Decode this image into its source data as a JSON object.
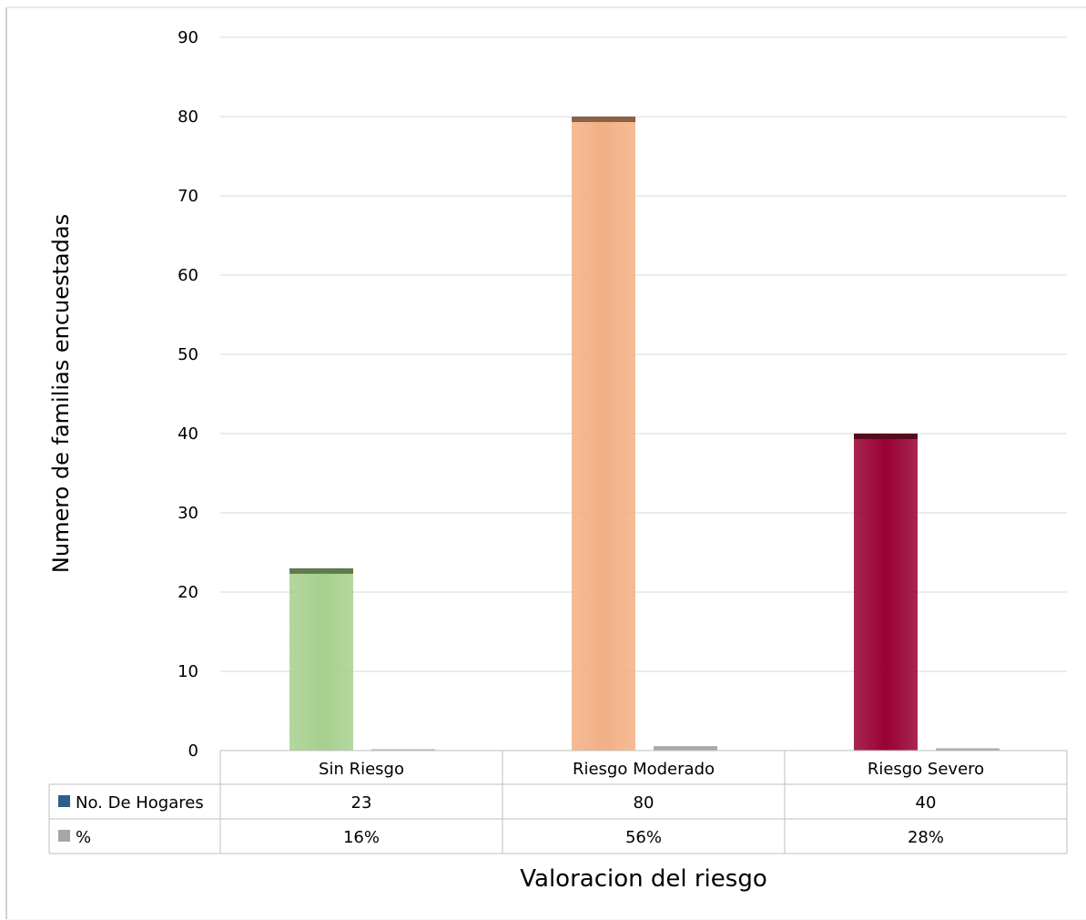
{
  "chart_data": {
    "type": "bar",
    "categories": [
      "Sin Riesgo",
      "Riesgo Moderado",
      "Riesgo Severo"
    ],
    "series": [
      {
        "name": "No. De Hogares",
        "values": [
          23,
          80,
          40
        ]
      },
      {
        "name": "%",
        "values": [
          0.16,
          0.56,
          0.28
        ]
      }
    ],
    "series_display": [
      [
        "23",
        "80",
        "40"
      ],
      [
        "16%",
        "56%",
        "28%"
      ]
    ],
    "bar_colors": [
      "#a6d08d",
      "#f2b085",
      "#990033"
    ],
    "bar_top_colors": [
      "#5f7b4b",
      "#8c6244",
      "#5a0a1e"
    ],
    "pct_bar_color": "#a9a9a9",
    "legend_colors": [
      "#2f5d8a",
      "#a6a6a6"
    ],
    "xlabel": "Valoracion del riesgo",
    "ylabel": "Numero de familias encuestadas",
    "ylim": [
      0,
      90
    ],
    "yticks": [
      0,
      10,
      20,
      30,
      40,
      50,
      60,
      70,
      80,
      90
    ],
    "grid": true,
    "legend": "data-table"
  }
}
